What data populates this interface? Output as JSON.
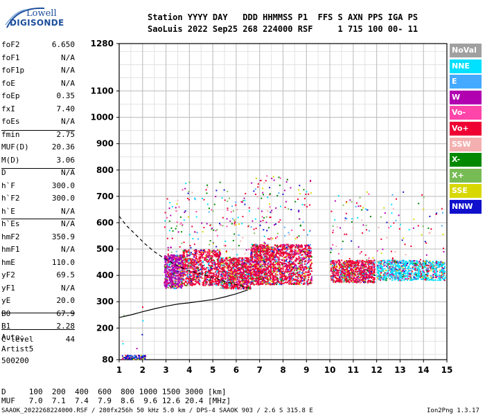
{
  "logo": {
    "line1": "Lowell",
    "line2": "DIGISONDE"
  },
  "header": {
    "row1": "Station YYYY DAY   DDD HHMMSS P1  FFS S AXN PPS IGA PS",
    "row2": "SaoLuis 2022 Sep25 268 224000 RSF     1 715 100 00- 11"
  },
  "params": [
    {
      "k": "foF2",
      "v": "6.650"
    },
    {
      "k": "foF1",
      "v": "N/A"
    },
    {
      "k": "foF1p",
      "v": "N/A"
    },
    {
      "k": "foE",
      "v": "N/A"
    },
    {
      "k": "foEp",
      "v": "0.35"
    },
    {
      "k": "fxI",
      "v": "7.40"
    },
    {
      "k": "foEs",
      "v": "N/A"
    },
    {
      "k": "fmin",
      "v": "2.75"
    },
    {
      "k": "MUF(D)",
      "v": "20.36"
    },
    {
      "k": "M(D)",
      "v": "3.06"
    },
    {
      "k": "D",
      "v": "N/A"
    },
    {
      "k": "h`F",
      "v": "300.0"
    },
    {
      "k": "h`F2",
      "v": "300.0"
    },
    {
      "k": "h`E",
      "v": "N/A"
    },
    {
      "k": "h`Es",
      "v": "N/A"
    },
    {
      "k": "hmF2",
      "v": "350.9"
    },
    {
      "k": "hmF1",
      "v": "N/A"
    },
    {
      "k": "hmE",
      "v": "110.0"
    },
    {
      "k": "yF2",
      "v": "69.5"
    },
    {
      "k": "yF1",
      "v": "N/A"
    },
    {
      "k": "yE",
      "v": "20.0"
    },
    {
      "k": "B0",
      "v": "67.9"
    },
    {
      "k": "B1",
      "v": "2.28"
    },
    {
      "k": "C-level",
      "v": "44"
    }
  ],
  "auto": {
    "line1": "Auto:",
    "line2": "Artist5",
    "line3": "500200"
  },
  "legend": [
    {
      "label": "NoVal",
      "color": "#a0a0a0"
    },
    {
      "label": "NNE",
      "color": "#00e0ff"
    },
    {
      "label": "E",
      "color": "#44aaff"
    },
    {
      "label": "W",
      "color": "#b000b0"
    },
    {
      "label": "Vo-",
      "color": "#ff44aa"
    },
    {
      "label": "Vo+",
      "color": "#ee0033"
    },
    {
      "label": "SSW",
      "color": "#f4b0b0"
    },
    {
      "label": "X-",
      "color": "#008800"
    },
    {
      "label": "X+",
      "color": "#77bb55"
    },
    {
      "label": "SSE",
      "color": "#d8d800"
    },
    {
      "label": "NNW",
      "color": "#1010cc"
    }
  ],
  "footer": {
    "d_row": "D     100  200  400  600  800 1000 1500 3000 [km]",
    "muf_row": "MUF   7.0  7.1  7.4  7.9  8.6  9.6 12.6 20.4 [MHz]",
    "file_row": "SAAOK_2022268224000.RSF / 280fx256h 50 kHz 5.0 km / DPS-4 SAAOK 903 / 2.6 S 315.8 E",
    "version": "Ion2Png 1.3.17"
  },
  "chart_data": {
    "type": "scatter",
    "title": "",
    "xlabel": "",
    "ylabel": "",
    "xlim": [
      1,
      15
    ],
    "ylim": [
      80,
      1280
    ],
    "xticks": [
      1,
      2,
      3,
      4,
      5,
      6,
      7,
      8,
      9,
      10,
      11,
      12,
      13,
      14,
      15
    ],
    "yticks": [
      80,
      200,
      300,
      400,
      500,
      600,
      700,
      800,
      900,
      1000,
      1100,
      1280
    ],
    "grid": true,
    "trace": {
      "name": "",
      "x": [
        1.0,
        1.5,
        2.0,
        2.5,
        3.0,
        3.5,
        4.0,
        4.5,
        5.0,
        5.5,
        6.0,
        6.5
      ],
      "y": [
        240,
        250,
        262,
        273,
        283,
        291,
        296,
        302,
        308,
        318,
        330,
        345
      ]
    },
    "profile": {
      "name": "",
      "x": [
        1.0,
        1.3,
        1.7,
        2.1,
        2.5,
        3.0,
        3.4,
        3.9,
        4.5,
        5.1,
        5.6,
        6.1,
        6.5
      ],
      "y": [
        625,
        590,
        555,
        520,
        490,
        460,
        440,
        420,
        405,
        390,
        375,
        362,
        352
      ]
    },
    "echo_clusters": [
      {
        "x": [
          2.9,
          3.7
        ],
        "y": [
          330,
          480
        ],
        "dominant": "W"
      },
      {
        "x": [
          3.7,
          5.3
        ],
        "y": [
          340,
          500
        ],
        "dominant": "Vo+"
      },
      {
        "x": [
          5.3,
          6.6
        ],
        "y": [
          330,
          470
        ],
        "dominant": "Vo+"
      },
      {
        "x": [
          6.6,
          7.6
        ],
        "y": [
          340,
          520
        ],
        "dominant": "Vo+"
      },
      {
        "x": [
          7.6,
          9.2
        ],
        "y": [
          340,
          520
        ],
        "dominant": "Vo+"
      },
      {
        "x": [
          10.0,
          11.9
        ],
        "y": [
          360,
          460
        ],
        "dominant": "Vo+"
      },
      {
        "x": [
          12.0,
          14.9
        ],
        "y": [
          370,
          460
        ],
        "dominant": "NNE"
      },
      {
        "x": [
          1.1,
          2.1
        ],
        "y": [
          80,
          100
        ],
        "dominant": "NNW"
      }
    ]
  }
}
